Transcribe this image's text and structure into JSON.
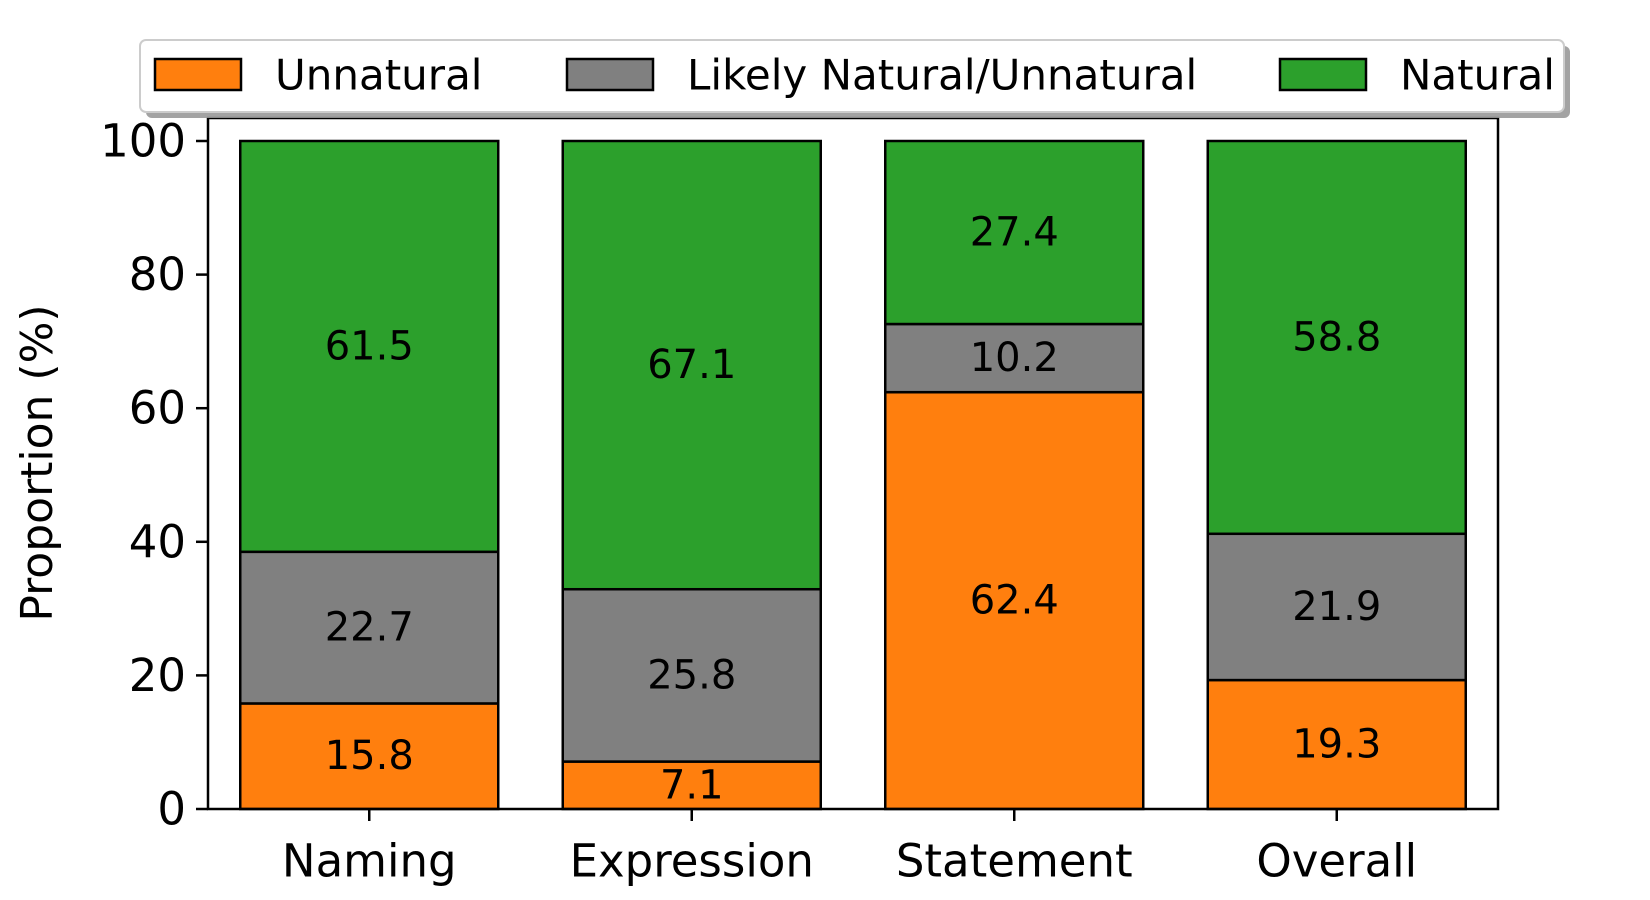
{
  "chart_data": {
    "type": "bar",
    "stacked": true,
    "categories": [
      "Naming",
      "Expression",
      "Statement",
      "Overall"
    ],
    "series": [
      {
        "name": "Unnatural",
        "color": "#ff7f0e",
        "values": [
          15.8,
          7.1,
          62.4,
          19.3
        ]
      },
      {
        "name": "Likely Natural/Unnatural",
        "color": "#808080",
        "values": [
          22.7,
          25.8,
          10.2,
          21.9
        ]
      },
      {
        "name": "Natural",
        "color": "#2ca02c",
        "values": [
          61.5,
          67.1,
          27.4,
          58.8
        ]
      }
    ],
    "ylabel": "Proportion (%)",
    "xlabel": "",
    "ylim": [
      0,
      100
    ],
    "yticks": [
      0,
      20,
      40,
      60,
      80,
      100
    ],
    "grid": false,
    "legend_position": "top",
    "legend_columns": 3,
    "data_labels": true
  }
}
